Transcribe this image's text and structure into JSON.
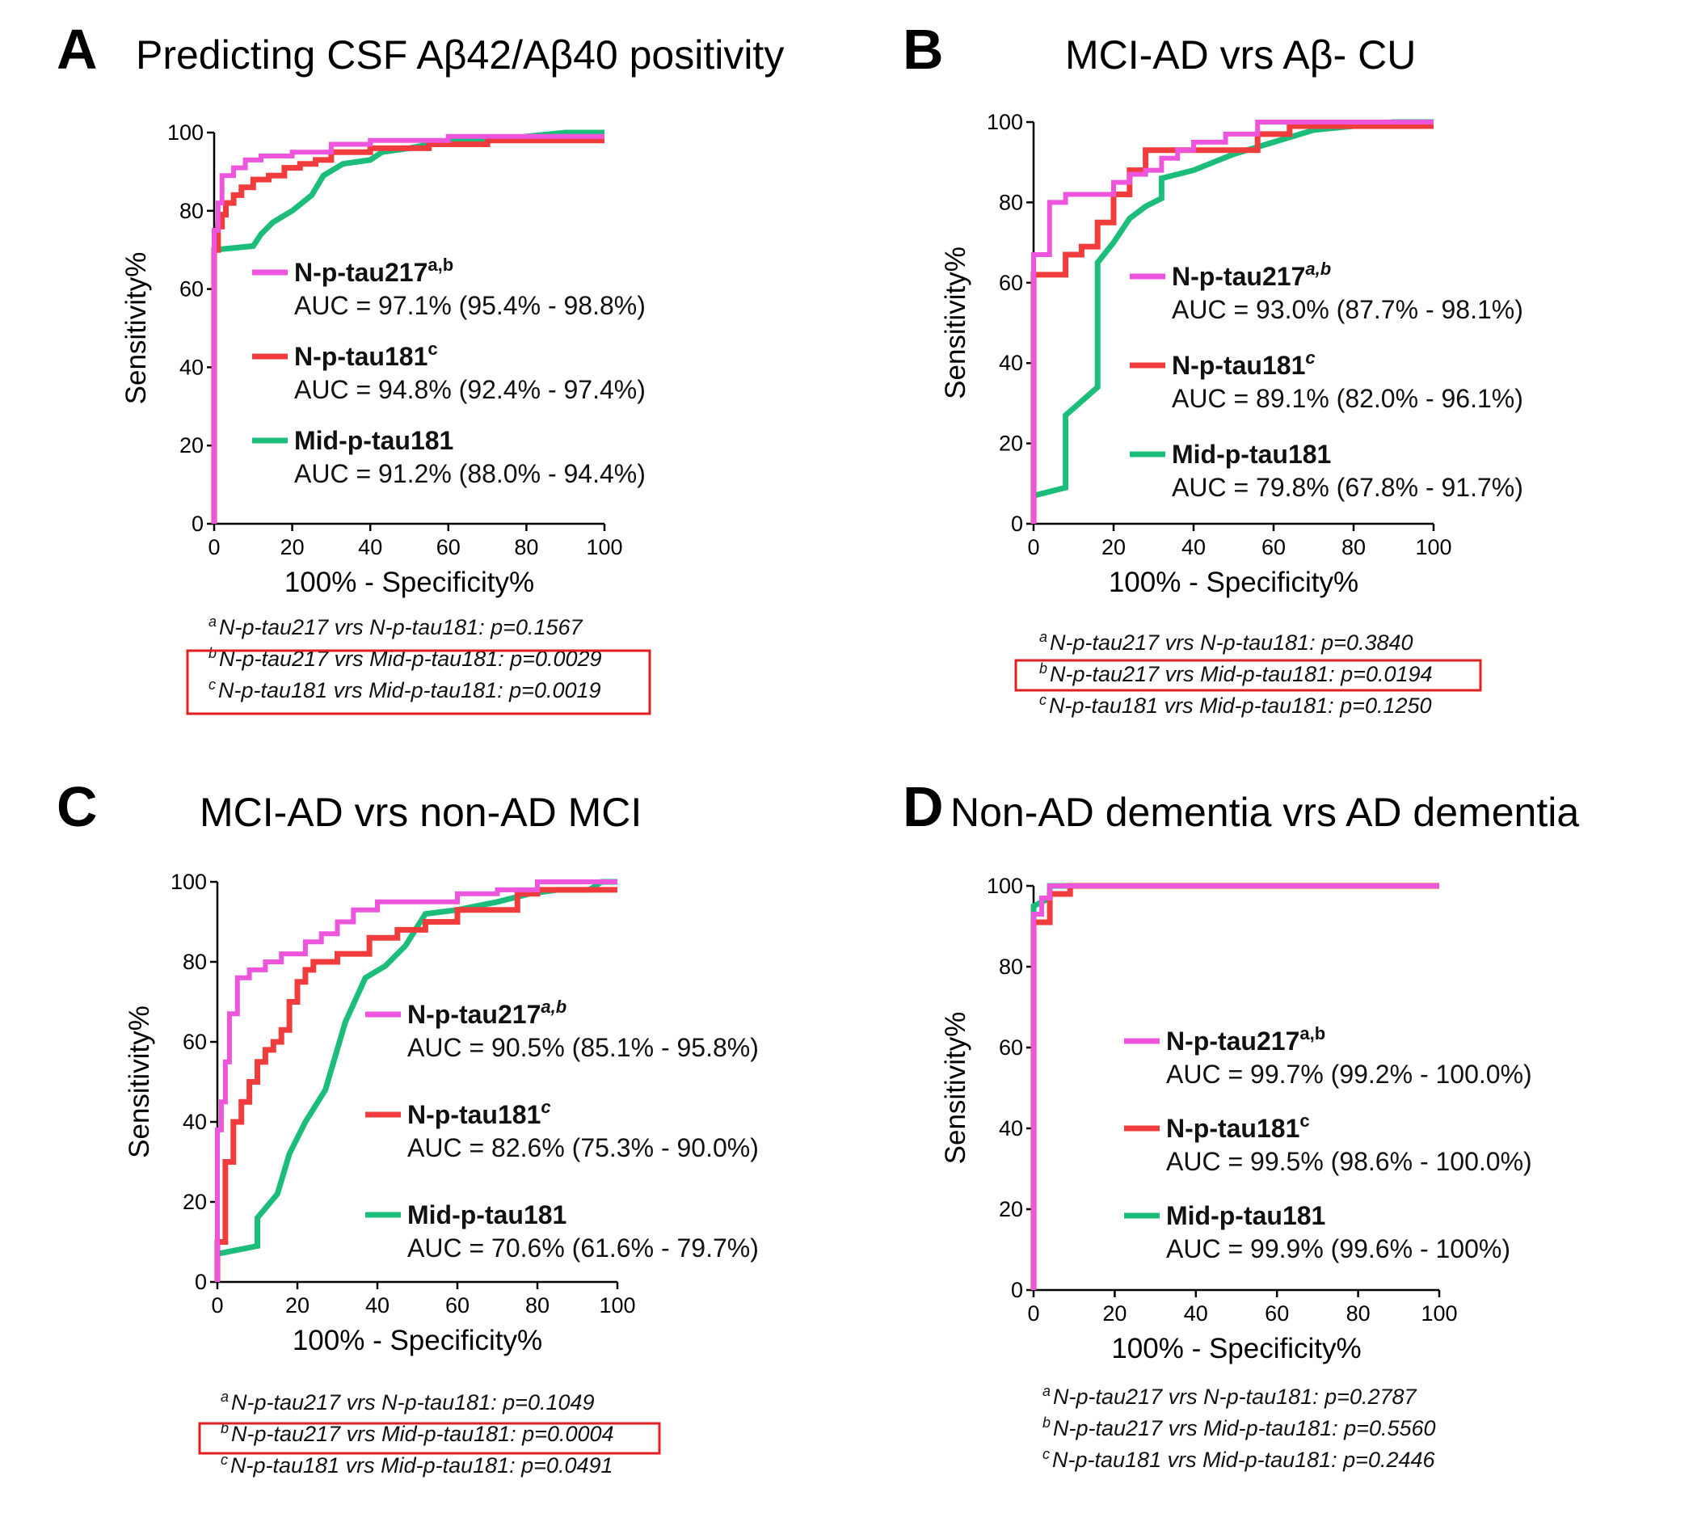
{
  "colors": {
    "np217": "#ee55dd",
    "np181": "#f03c3c",
    "mid181": "#1cbd7a",
    "highlight": "#e02020"
  },
  "chart_data": [
    {
      "panel": "A",
      "type": "line",
      "title": "Predicting CSF Aβ42/Aβ40 positivity",
      "xlabel": "100% - Specificity%",
      "ylabel": "Sensitivity%",
      "xlim": [
        0,
        100
      ],
      "ylim": [
        0,
        100
      ],
      "xticks": [
        "0",
        "20",
        "40",
        "60",
        "80",
        "100"
      ],
      "yticks": [
        "0",
        "20",
        "40",
        "60",
        "80",
        "100"
      ],
      "series": [
        {
          "name": "N-p-tau217",
          "sup": "a,b",
          "color_key": "np217",
          "auc": "AUC = 97.1% (95.4% - 98.8%)",
          "x": [
            0,
            0,
            1,
            1,
            2,
            2,
            5,
            5,
            8,
            8,
            12,
            12,
            20,
            20,
            30,
            30,
            40,
            40,
            60,
            60,
            100
          ],
          "y": [
            0,
            75,
            75,
            82,
            82,
            89,
            89,
            91,
            91,
            93,
            93,
            94,
            94,
            95,
            95,
            97,
            97,
            98,
            98,
            99,
            99
          ]
        },
        {
          "name": "N-p-tau181",
          "sup": "c",
          "color_key": "np181",
          "auc": "AUC = 94.8% (92.4% - 97.4%)",
          "x": [
            0,
            0,
            1,
            1,
            2,
            2,
            3,
            3,
            5,
            5,
            7,
            7,
            10,
            10,
            14,
            14,
            18,
            18,
            22,
            22,
            26,
            26,
            30,
            30,
            40,
            40,
            55,
            55,
            70,
            70,
            100
          ],
          "y": [
            0,
            70,
            70,
            76,
            76,
            79,
            79,
            82,
            82,
            84,
            84,
            86,
            86,
            88,
            88,
            89,
            89,
            91,
            91,
            92,
            92,
            93,
            93,
            95,
            95,
            96,
            96,
            97,
            97,
            98,
            98
          ]
        },
        {
          "name": "Mid-p-tau181",
          "sup": "",
          "color_key": "mid181",
          "auc": "AUC = 91.2% (88.0% - 94.4%)",
          "x": [
            0,
            0,
            10,
            12,
            15,
            20,
            25,
            28,
            33,
            40,
            43,
            50,
            60,
            70,
            80,
            90,
            100
          ],
          "y": [
            0,
            70,
            71,
            74,
            77,
            80,
            84,
            89,
            92,
            93,
            95,
            96,
            98,
            98,
            99,
            100,
            100
          ]
        }
      ],
      "notes": [
        {
          "sup": "a",
          "text": "N-p-tau217 vrs N-p-tau181: p=0.1567",
          "highlight": false
        },
        {
          "sup": "b",
          "text": "N-p-tau217 vrs Mid-p-tau181: p=0.0029",
          "highlight": true
        },
        {
          "sup": "c",
          "text": "N-p-tau181 vrs Mid-p-tau181: p=0.0019",
          "highlight": true
        }
      ]
    },
    {
      "panel": "B",
      "type": "line",
      "title": "MCI-AD vrs Aβ- CU",
      "xlabel": "100% - Specificity%",
      "ylabel": "Sensitivity%",
      "xlim": [
        0,
        100
      ],
      "ylim": [
        0,
        100
      ],
      "xticks": [
        "0",
        "20",
        "40",
        "60",
        "80",
        "100"
      ],
      "yticks": [
        "0",
        "20",
        "40",
        "60",
        "80",
        "100"
      ],
      "series": [
        {
          "name": "N-p-tau217",
          "sup": "a,b",
          "color_key": "np217",
          "auc": "AUC = 93.0% (87.7% - 98.1%)",
          "x": [
            0,
            0,
            4,
            4,
            8,
            8,
            20,
            20,
            24,
            24,
            28,
            28,
            32,
            32,
            36,
            36,
            40,
            40,
            48,
            48,
            56,
            56,
            100
          ],
          "y": [
            0,
            67,
            67,
            80,
            80,
            82,
            82,
            85,
            85,
            87,
            87,
            88,
            88,
            91,
            91,
            93,
            93,
            95,
            95,
            97,
            97,
            100,
            100
          ]
        },
        {
          "name": "N-p-tau181",
          "sup": "c",
          "color_key": "np181",
          "auc": "AUC = 89.1% (82.0% - 96.1%)",
          "x": [
            0,
            0,
            8,
            8,
            12,
            12,
            16,
            16,
            20,
            20,
            24,
            24,
            28,
            28,
            32,
            32,
            56,
            56,
            64,
            64,
            100
          ],
          "y": [
            0,
            62,
            62,
            67,
            67,
            69,
            69,
            75,
            75,
            82,
            82,
            88,
            88,
            93,
            93,
            93,
            93,
            97,
            97,
            99,
            99
          ]
        },
        {
          "name": "Mid-p-tau181",
          "sup": "",
          "color_key": "mid181",
          "auc": "AUC = 79.8% (67.8% - 91.7%)",
          "x": [
            0,
            0,
            8,
            8,
            16,
            16,
            20,
            24,
            28,
            32,
            32,
            36,
            40,
            50,
            60,
            70,
            80,
            90,
            100
          ],
          "y": [
            0,
            7,
            9,
            27,
            34,
            65,
            70,
            76,
            79,
            81,
            86,
            87,
            88,
            92,
            95,
            98,
            99,
            100,
            100
          ]
        }
      ],
      "notes": [
        {
          "sup": "a",
          "text": "N-p-tau217 vrs N-p-tau181: p=0.3840",
          "highlight": false
        },
        {
          "sup": "b",
          "text": "N-p-tau217 vrs Mid-p-tau181: p=0.0194",
          "highlight": true
        },
        {
          "sup": "c",
          "text": "N-p-tau181 vrs Mid-p-tau181: p=0.1250",
          "highlight": false
        }
      ]
    },
    {
      "panel": "C",
      "type": "line",
      "title": "MCI-AD vrs non-AD MCI",
      "xlabel": "100% - Specificity%",
      "ylabel": "Sensitivity%",
      "xlim": [
        0,
        100
      ],
      "ylim": [
        0,
        100
      ],
      "xticks": [
        "0",
        "20",
        "40",
        "60",
        "80",
        "100"
      ],
      "yticks": [
        "0",
        "20",
        "40",
        "60",
        "80",
        "100"
      ],
      "series": [
        {
          "name": "N-p-tau217",
          "sup": "a,b",
          "color_key": "np217",
          "auc": "AUC = 90.5% (85.1% - 95.8%)",
          "x": [
            0,
            0,
            1,
            1,
            2,
            2,
            3,
            3,
            5,
            5,
            8,
            8,
            12,
            12,
            16,
            16,
            22,
            22,
            26,
            26,
            30,
            30,
            34,
            34,
            40,
            40,
            60,
            60,
            70,
            70,
            80,
            80,
            100
          ],
          "y": [
            0,
            38,
            38,
            45,
            45,
            55,
            55,
            67,
            67,
            76,
            76,
            78,
            78,
            80,
            80,
            82,
            82,
            85,
            85,
            87,
            87,
            90,
            90,
            93,
            93,
            95,
            95,
            97,
            97,
            98,
            98,
            100,
            100
          ]
        },
        {
          "name": "N-p-tau181",
          "sup": "c",
          "color_key": "np181",
          "auc": "AUC = 82.6% (75.3% - 90.0%)",
          "x": [
            0,
            0,
            2,
            2,
            4,
            4,
            6,
            6,
            8,
            8,
            10,
            10,
            12,
            12,
            14,
            14,
            16,
            16,
            18,
            18,
            20,
            20,
            22,
            22,
            24,
            24,
            30,
            30,
            38,
            38,
            45,
            45,
            52,
            52,
            60,
            60,
            75,
            75,
            80,
            80,
            100
          ],
          "y": [
            0,
            10,
            10,
            30,
            30,
            40,
            40,
            45,
            45,
            50,
            50,
            55,
            55,
            58,
            58,
            60,
            60,
            63,
            63,
            70,
            70,
            75,
            75,
            78,
            78,
            80,
            80,
            82,
            82,
            86,
            86,
            88,
            88,
            90,
            90,
            93,
            93,
            97,
            97,
            98,
            98
          ]
        },
        {
          "name": "Mid-p-tau181",
          "sup": "",
          "color_key": "mid181",
          "auc": "AUC = 70.6% (61.6% - 79.7%)",
          "x": [
            0,
            0,
            10,
            10,
            15,
            18,
            22,
            27,
            32,
            37,
            42,
            47,
            52,
            60,
            70,
            78,
            85,
            93,
            96,
            100
          ],
          "y": [
            0,
            7,
            9,
            16,
            22,
            32,
            40,
            48,
            65,
            76,
            79,
            84,
            92,
            93,
            95,
            97,
            98,
            98,
            100,
            100
          ]
        }
      ],
      "notes": [
        {
          "sup": "a",
          "text": "N-p-tau217 vrs N-p-tau181: p=0.1049",
          "highlight": false
        },
        {
          "sup": "b",
          "text": "N-p-tau217 vrs Mid-p-tau181: p=0.0004",
          "highlight": true
        },
        {
          "sup": "c",
          "text": "N-p-tau181 vrs Mid-p-tau181: p=0.0491",
          "highlight": false
        }
      ]
    },
    {
      "panel": "D",
      "type": "line",
      "title": "Non-AD dementia vrs AD dementia",
      "xlabel": "100% - Specificity%",
      "ylabel": "Sensitivity%",
      "xlim": [
        0,
        100
      ],
      "ylim": [
        0,
        100
      ],
      "xticks": [
        "0",
        "20",
        "40",
        "60",
        "80",
        "100"
      ],
      "yticks": [
        "0",
        "20",
        "40",
        "60",
        "80",
        "100"
      ],
      "series": [
        {
          "name": "N-p-tau217",
          "sup": "a,b",
          "color_key": "np217",
          "auc": "AUC = 99.7% (99.2% - 100.0%)",
          "x": [
            0,
            0,
            2,
            2,
            4,
            4,
            100
          ],
          "y": [
            0,
            93,
            93,
            97,
            97,
            100,
            100
          ]
        },
        {
          "name": "N-p-tau181",
          "sup": "c",
          "color_key": "np181",
          "auc": "AUC = 99.5% (98.6% - 100.0%)",
          "x": [
            0,
            0,
            4,
            4,
            9,
            9,
            100
          ],
          "y": [
            0,
            91,
            91,
            98,
            98,
            100,
            100
          ]
        },
        {
          "name": "Mid-p-tau181",
          "sup": "",
          "color_key": "mid181",
          "auc": "AUC = 99.9% (99.6% - 100%)",
          "x": [
            0,
            0,
            4,
            4,
            100
          ],
          "y": [
            0,
            95,
            97,
            100,
            100
          ]
        }
      ],
      "notes": [
        {
          "sup": "a",
          "text": "N-p-tau217 vrs N-p-tau181: p=0.2787",
          "highlight": false
        },
        {
          "sup": "b",
          "text": "N-p-tau217 vrs Mid-p-tau181: p=0.5560",
          "highlight": false
        },
        {
          "sup": "c",
          "text": "N-p-tau181 vrs Mid-p-tau181: p=0.2446",
          "highlight": false
        }
      ]
    }
  ]
}
